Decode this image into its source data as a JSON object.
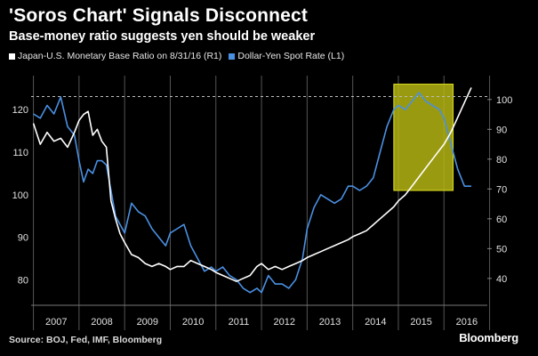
{
  "header": {
    "title": "'Soros Chart' Signals Disconnect",
    "subtitle": "Base-money ratio suggests yen should be weaker"
  },
  "legend": {
    "items": [
      {
        "label": "Japan-U.S. Monetary Base Ratio on 8/31/16 (R1)",
        "color": "#ffffff"
      },
      {
        "label": "Dollar-Yen Spot Rate (L1)",
        "color": "#4a90e2"
      }
    ]
  },
  "footer": {
    "source": "Source: BOJ, Fed, IMF, Bloomberg",
    "brand": "Bloomberg"
  },
  "colors": {
    "background": "#000000",
    "ratio_line": "#ffffff",
    "yen_line": "#4a90e2",
    "highlight": "#b5b514"
  },
  "chart_data": {
    "type": "line",
    "title": "'Soros Chart' Signals Disconnect",
    "subtitle": "Base-money ratio suggests yen should be weaker",
    "x_categories": [
      "2007",
      "2008",
      "2009",
      "2010",
      "2011",
      "2012",
      "2013",
      "2014",
      "2015",
      "2016"
    ],
    "xlim": [
      2006.95,
      2016.95
    ],
    "left_axis": {
      "ticks": [
        80,
        90,
        100,
        110,
        120
      ],
      "ylim": [
        74,
        128
      ]
    },
    "right_axis": {
      "ticks": [
        40,
        50,
        60,
        70,
        80,
        90,
        100
      ],
      "ylim": [
        31,
        108
      ]
    },
    "reference_line": {
      "axis": "right",
      "value": 101,
      "style": "dashed"
    },
    "highlight_region": {
      "x_start": 2014.9,
      "x_end": 2016.2,
      "y_start_left": 101,
      "y_end_left": 126
    },
    "grid": "vertical only",
    "legend_position": "top-left",
    "series": [
      {
        "name": "Japan-U.S. Monetary Base Ratio on 8/31/16 (R1)",
        "axis": "right",
        "x": [
          2007.0,
          2007.15,
          2007.3,
          2007.45,
          2007.6,
          2007.75,
          2007.9,
          2008.0,
          2008.1,
          2008.2,
          2008.3,
          2008.4,
          2008.5,
          2008.6,
          2008.7,
          2008.8,
          2008.9,
          2009.0,
          2009.15,
          2009.3,
          2009.45,
          2009.6,
          2009.75,
          2009.9,
          2010.0,
          2010.15,
          2010.3,
          2010.45,
          2010.6,
          2010.75,
          2010.9,
          2011.0,
          2011.15,
          2011.3,
          2011.45,
          2011.6,
          2011.75,
          2011.9,
          2012.0,
          2012.15,
          2012.3,
          2012.45,
          2012.6,
          2012.75,
          2012.9,
          2013.0,
          2013.15,
          2013.3,
          2013.45,
          2013.6,
          2013.75,
          2013.9,
          2014.0,
          2014.15,
          2014.3,
          2014.45,
          2014.6,
          2014.75,
          2014.9,
          2015.0,
          2015.15,
          2015.3,
          2015.45,
          2015.6,
          2015.75,
          2015.9,
          2016.0,
          2016.15,
          2016.3,
          2016.45,
          2016.6
        ],
        "values": [
          92,
          85,
          89,
          86,
          87,
          84,
          89,
          93,
          95,
          96,
          88,
          90,
          86,
          84,
          66,
          60,
          55,
          52,
          48,
          47,
          45,
          44,
          45,
          44,
          43,
          44,
          44,
          46,
          45,
          44,
          43,
          42,
          41,
          40,
          39,
          40,
          41,
          44,
          45,
          43,
          44,
          43,
          44,
          45,
          46,
          47,
          48,
          49,
          50,
          51,
          52,
          53,
          54,
          55,
          56,
          58,
          60,
          62,
          64,
          66,
          68,
          71,
          74,
          77,
          80,
          83,
          85,
          89,
          94,
          99,
          104
        ]
      },
      {
        "name": "Dollar-Yen Spot Rate (L1)",
        "axis": "left",
        "x": [
          2007.0,
          2007.15,
          2007.3,
          2007.45,
          2007.6,
          2007.75,
          2007.9,
          2008.0,
          2008.1,
          2008.2,
          2008.3,
          2008.4,
          2008.5,
          2008.6,
          2008.7,
          2008.8,
          2008.9,
          2009.0,
          2009.15,
          2009.3,
          2009.45,
          2009.6,
          2009.75,
          2009.9,
          2010.0,
          2010.15,
          2010.3,
          2010.45,
          2010.6,
          2010.75,
          2010.9,
          2011.0,
          2011.15,
          2011.3,
          2011.45,
          2011.6,
          2011.75,
          2011.9,
          2012.0,
          2012.15,
          2012.3,
          2012.45,
          2012.6,
          2012.75,
          2012.9,
          2013.0,
          2013.15,
          2013.3,
          2013.45,
          2013.6,
          2013.75,
          2013.9,
          2014.0,
          2014.15,
          2014.3,
          2014.45,
          2014.6,
          2014.75,
          2014.9,
          2015.0,
          2015.15,
          2015.3,
          2015.45,
          2015.6,
          2015.75,
          2015.9,
          2016.0,
          2016.15,
          2016.3,
          2016.45,
          2016.6
        ],
        "values": [
          119,
          118,
          121,
          119,
          123,
          116,
          114,
          108,
          103,
          106,
          105,
          108,
          108,
          107,
          101,
          95,
          93,
          91,
          98,
          96,
          95,
          92,
          90,
          88,
          91,
          92,
          93,
          88,
          85,
          82,
          83,
          82,
          83,
          81,
          80,
          78,
          77,
          78,
          77,
          81,
          79,
          79,
          78,
          80,
          85,
          92,
          97,
          100,
          99,
          98,
          99,
          102,
          102,
          101,
          102,
          104,
          110,
          116,
          120,
          121,
          120,
          122,
          124,
          122,
          121,
          120,
          118,
          112,
          106,
          102,
          102
        ]
      }
    ]
  }
}
